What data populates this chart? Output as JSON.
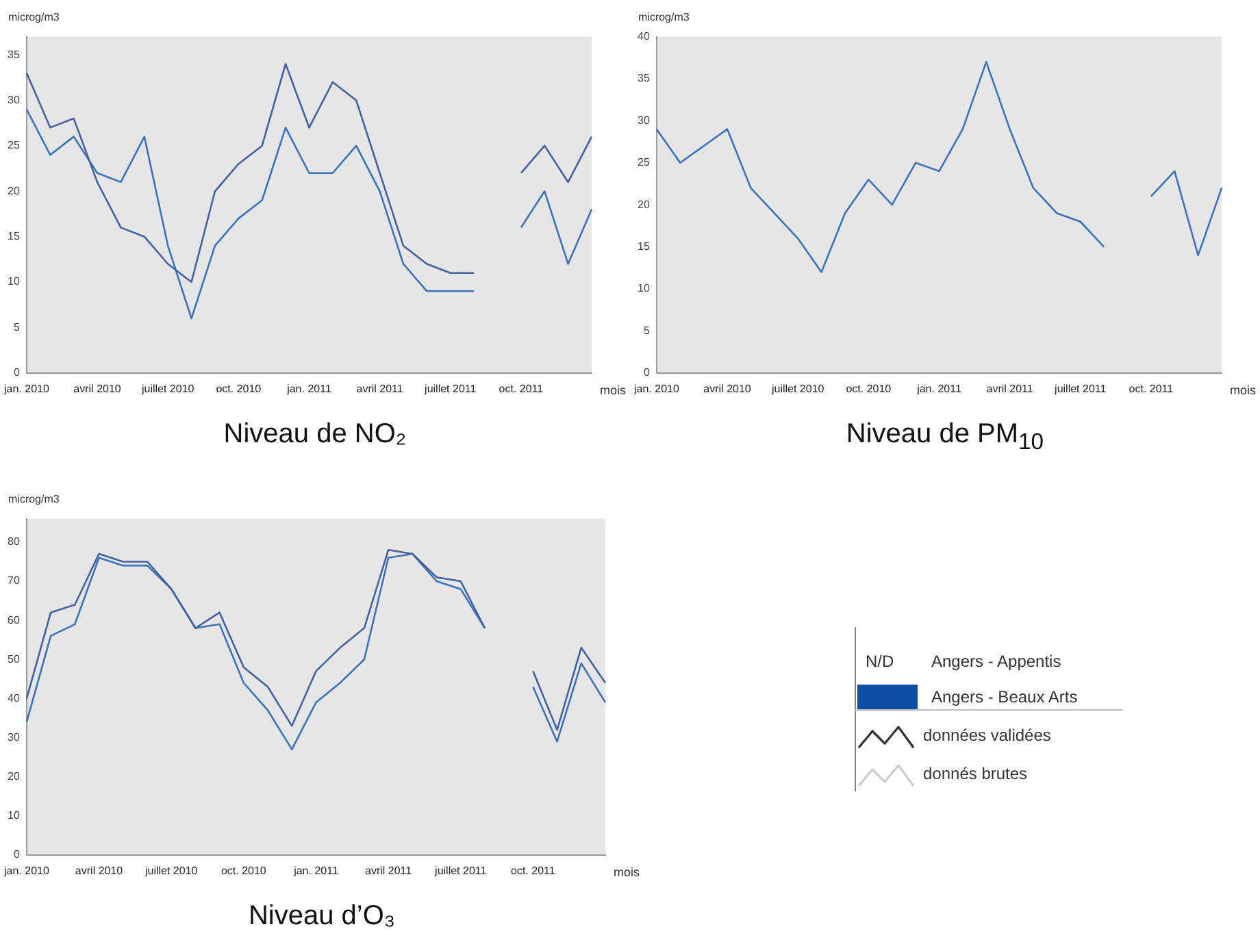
{
  "chart_data": [
    {
      "type": "line",
      "title": "Niveau de NO₂",
      "ylabel": "microg/m3",
      "xlabel": "mois",
      "categories": [
        "jan. 2010",
        null,
        null,
        "avril 2010",
        null,
        null,
        "juillet 2010",
        null,
        null,
        "oct. 2010",
        null,
        null,
        "jan. 2011",
        null,
        null,
        "avril 2011",
        null,
        null,
        "juillet 2011",
        null,
        null,
        "oct. 2011",
        null,
        null,
        null
      ],
      "series": [
        {
          "color": "#44609e",
          "values": [
            33,
            27,
            28,
            21,
            16,
            15,
            12,
            10,
            20,
            23,
            25,
            34,
            27,
            32,
            30,
            22,
            14,
            12,
            11,
            11,
            null,
            22,
            25,
            21,
            26
          ]
        },
        {
          "color": "#3b72b8",
          "values": [
            29,
            24,
            26,
            22,
            21,
            26,
            14,
            6,
            14,
            17,
            19,
            27,
            22,
            22,
            25,
            20,
            12,
            9,
            9,
            9,
            null,
            16,
            20,
            12,
            18
          ]
        }
      ],
      "ylim": [
        0,
        37
      ],
      "yticks": [
        0,
        5,
        10,
        15,
        20,
        25,
        30,
        35
      ],
      "grid": false,
      "legend": false,
      "marker": "none",
      "line_style": "solid"
    },
    {
      "type": "line",
      "title": "Niveau de PM$_{10}$",
      "ylabel": "microg/m3",
      "xlabel": "mois",
      "categories": [
        "jan. 2010",
        null,
        null,
        "avril 2010",
        null,
        null,
        "juillet 2010",
        null,
        null,
        "oct. 2010",
        null,
        null,
        "jan. 2011",
        null,
        null,
        "avril 2011",
        null,
        null,
        "juillet 2011",
        null,
        null,
        "oct. 2011",
        null,
        null,
        null
      ],
      "series": [
        {
          "color": "#3b72b8",
          "values": [
            29,
            25,
            27,
            29,
            22,
            19,
            16,
            12,
            19,
            23,
            20,
            25,
            24,
            29,
            37,
            29,
            22,
            19,
            18,
            15,
            null,
            21,
            24,
            14,
            22
          ]
        }
      ],
      "ylim": [
        0,
        40
      ],
      "yticks": [
        0,
        5,
        10,
        15,
        20,
        25,
        30,
        35,
        40
      ],
      "grid": false,
      "legend": false,
      "marker": "none",
      "line_style": "solid"
    },
    {
      "type": "line",
      "title": "Niveau d’O₃",
      "ylabel": "microg/m3",
      "xlabel": "mois",
      "categories": [
        "jan. 2010",
        null,
        null,
        "avril 2010",
        null,
        null,
        "juillet 2010",
        null,
        null,
        "oct. 2010",
        null,
        null,
        "jan. 2011",
        null,
        null,
        "avril 2011",
        null,
        null,
        "juillet 2011",
        null,
        null,
        "oct. 2011",
        null,
        null,
        null
      ],
      "series": [
        {
          "color": "#44609e",
          "values": [
            40,
            62,
            64,
            77,
            75,
            75,
            68,
            58,
            62,
            48,
            43,
            33,
            47,
            53,
            58,
            78,
            77,
            71,
            70,
            58,
            null,
            47,
            32,
            53,
            44
          ]
        },
        {
          "color": "#3b72b8",
          "values": [
            34,
            56,
            59,
            76,
            74,
            74,
            68,
            58,
            59,
            44,
            37,
            27,
            39,
            44,
            50,
            76,
            77,
            70,
            68,
            58,
            null,
            43,
            29,
            49,
            39
          ]
        }
      ],
      "ylim": [
        0,
        86
      ],
      "yticks": [
        0,
        10,
        20,
        30,
        40,
        50,
        60,
        70,
        80
      ],
      "grid": false,
      "legend": false,
      "marker": "none",
      "line_style": "solid"
    },
    {
      "type": "other",
      "annotations": [
        "N/D",
        "Angers - Appentis",
        "Angers - Beaux Arts",
        "données validées",
        "donnés brutes"
      ]
    }
  ]
}
